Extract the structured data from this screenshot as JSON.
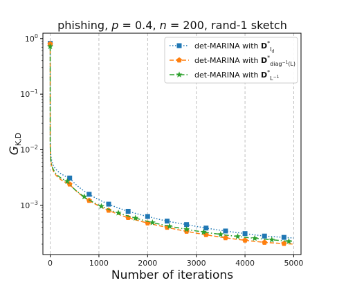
{
  "chart_data": {
    "type": "line",
    "title": "phishing, p = 0.4, n = 200, rand-1 sketch",
    "title_parts": {
      "prefix": "phishing, ",
      "p_var": "p",
      "p_val": " = 0.4, ",
      "n_var": "n",
      "n_val": " = 200, rand-1 sketch"
    },
    "xlabel": "Number of iterations",
    "ylabel": "G",
    "ylabel_sub": "K,D",
    "x_scale": "linear",
    "y_scale": "log",
    "xlim": [
      -150,
      5150
    ],
    "ylim": [
      0.00013,
      1.25
    ],
    "x_ticks": [
      0,
      1000,
      2000,
      3000,
      4000,
      5000
    ],
    "x_tick_labels": [
      "0",
      "1000",
      "2000",
      "3000",
      "4000",
      "5000"
    ],
    "y_ticks": [
      1,
      0.1,
      0.01,
      0.001
    ],
    "y_tick_labels": [
      "10^0",
      "10^-1",
      "10^-2",
      "10^-3"
    ],
    "y_tick_labels_parts": [
      {
        "base": "10",
        "exp": "0"
      },
      {
        "base": "10",
        "exp": "−1"
      },
      {
        "base": "10",
        "exp": "−2"
      },
      {
        "base": "10",
        "exp": "−3"
      }
    ],
    "grid": "vertical dashed",
    "legend_position": "top-right",
    "series": [
      {
        "name": "det-MARINA with D*_{I_d}",
        "legend_main": "det-MARINA with ",
        "legend_bold": "D",
        "legend_sup": "*",
        "legend_sub": "I",
        "legend_subsub": "d",
        "color": "#1f77b4",
        "linestyle": "dotted",
        "marker": "square",
        "x": [
          0,
          400,
          800,
          1200,
          1600,
          2000,
          2400,
          2800,
          3200,
          3600,
          4000,
          4400,
          4800
        ],
        "y": [
          0.82,
          0.0031,
          0.00158,
          0.00105,
          0.00078,
          0.00063,
          0.00052,
          0.00045,
          0.00039,
          0.000345,
          0.00031,
          0.00028,
          0.000265
        ]
      },
      {
        "name": "det-MARINA with D*_{diag^-1(L)}",
        "legend_main": "det-MARINA with ",
        "legend_bold": "D",
        "legend_sup": "*",
        "legend_sub": "diag",
        "legend_subsup": "−1",
        "legend_subtail": "(L)",
        "color": "#ff7f0e",
        "linestyle": "dashed",
        "marker": "pentagon",
        "x": [
          0,
          400,
          800,
          1200,
          1600,
          2000,
          2400,
          2800,
          3200,
          3600,
          4000,
          4400,
          4800
        ],
        "y": [
          0.8,
          0.0024,
          0.00122,
          0.00081,
          0.0006,
          0.00048,
          0.0004,
          0.00034,
          0.000295,
          0.00026,
          0.000235,
          0.000215,
          0.000205
        ]
      },
      {
        "name": "det-MARINA with D*_{L^-1}",
        "legend_main": "det-MARINA with ",
        "legend_bold": "D",
        "legend_sup": "*",
        "legend_sub": "L",
        "legend_subsup": "−1",
        "color": "#2ca02c",
        "linestyle": "dashdot",
        "marker": "star",
        "x": [
          0,
          350,
          700,
          1050,
          1400,
          1750,
          2100,
          2450,
          2800,
          3150,
          3500,
          3850,
          4200,
          4550,
          4900
        ],
        "y": [
          0.72,
          0.0027,
          0.00143,
          0.00096,
          0.00073,
          0.00059,
          0.00049,
          0.00042,
          0.00037,
          0.00033,
          0.0003,
          0.000275,
          0.000255,
          0.00024,
          0.000225
        ]
      }
    ]
  }
}
